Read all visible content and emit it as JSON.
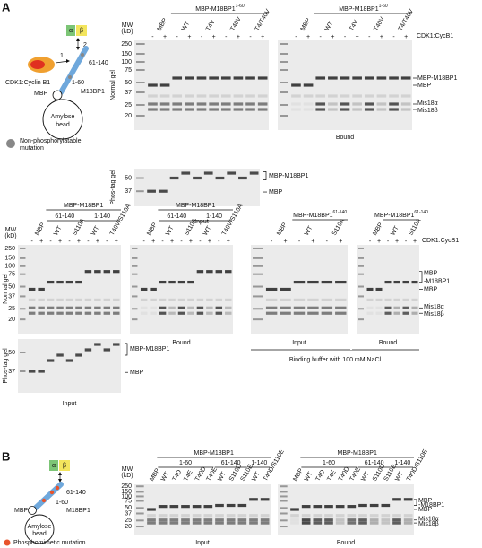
{
  "panel_a": {
    "label": "A",
    "schematic": {
      "alpha": "α",
      "beta": "β",
      "step_2": "2",
      "step_1": "1",
      "region_c": "61-140",
      "region_n": "1-60",
      "kinase": "CDK1:Cyclin B1",
      "tag": "MBP",
      "protein": "M18BP1",
      "bead": [
        "Amylose",
        "bead"
      ],
      "legend": [
        "Non-phosphorylatable",
        "mutation"
      ]
    },
    "top": {
      "mw_title": [
        "MW",
        "(kD)"
      ],
      "mw": [
        "250",
        "150",
        "100",
        "75",
        "50",
        "37",
        "25",
        "20"
      ],
      "phos_mw": [
        "50",
        "37"
      ],
      "normal_label": "Normal gel",
      "phos_label": "Phos-tag gel",
      "cdk_label": "CDK1:CycB1",
      "gels": [
        {
          "header": "MBP-M18BP1",
          "header_sup": "1-60",
          "lanes": [
            "MBP",
            "WT",
            "T4V",
            "T40V",
            "T4/T40V"
          ],
          "signs": [
            "-",
            "+",
            "-",
            "+",
            "-",
            "+",
            "-",
            "+",
            "-",
            "+"
          ],
          "caption": "Input"
        },
        {
          "header": "MBP-M18BP1",
          "header_sup": "1-60",
          "lanes": [
            "MBP",
            "WT",
            "T4V",
            "T40V",
            "T4/T40V"
          ],
          "signs": [
            "-",
            "+",
            "-",
            "+",
            "-",
            "+",
            "-",
            "+",
            "-",
            "+"
          ],
          "caption": "Bound"
        }
      ],
      "band_labels": [
        "MBP-M18BP1",
        "MBP",
        "Mis18α",
        "Mis18β"
      ],
      "phos_band_labels": [
        "MBP-M18BP1",
        "MBP"
      ]
    },
    "middle": {
      "mw_title": [
        "MW",
        "(kD)"
      ],
      "mw": [
        "250",
        "150",
        "100",
        "75",
        "50",
        "37",
        "25",
        "20"
      ],
      "phos_mw": [
        "50",
        "37"
      ],
      "normal_label": "Normal gel",
      "phos_label": "Phos-tag gel",
      "cdk_label": "CDK1:CycB1",
      "gels": [
        {
          "header": "MBP-M18BP1",
          "groups": [
            "61-140",
            "1-140"
          ],
          "lanes": [
            "MBP",
            "WT",
            "S110A",
            "WT",
            "T40V/S110A"
          ],
          "signs": [
            "-",
            "+",
            "-",
            "+",
            "-",
            "+",
            "-",
            "+",
            "-",
            "+"
          ],
          "caption": "Input"
        },
        {
          "header": "MBP-M18BP1",
          "groups": [
            "61-140",
            "1-140"
          ],
          "lanes": [
            "MBP",
            "WT",
            "S110A",
            "WT",
            "T40V/S110A"
          ],
          "signs": [
            "-",
            "+",
            "-",
            "+",
            "-",
            "+",
            "-",
            "+",
            "-",
            "+"
          ],
          "caption": "Bound"
        },
        {
          "header": "MBP-M18BP1",
          "header_sup": "61-140",
          "lanes": [
            "MBP",
            "WT",
            "S110A"
          ],
          "signs": [
            "-",
            "+",
            "-",
            "+",
            "-",
            "+"
          ],
          "caption": "Input"
        },
        {
          "header": "MBP-M18BP1",
          "header_sup": "61-140",
          "lanes": [
            "MBP",
            "WT",
            "S110A"
          ],
          "signs": [
            "-",
            "+",
            "-",
            "+",
            "-",
            "+"
          ],
          "caption": "Bound"
        }
      ],
      "band_labels": [
        "MBP",
        "-M18BP1",
        "MBP",
        "Mis18α",
        "Mis18β"
      ],
      "phos_band_labels": [
        "MBP-M18BP1",
        "MBP"
      ],
      "note": "Binding buffer with 100 mM NaCl"
    }
  },
  "panel_b": {
    "label": "B",
    "schematic": {
      "alpha": "α",
      "beta": "β",
      "region_c": "61-140",
      "region_n": "1-60",
      "tag": "MBP",
      "protein": "M18BP1",
      "bead": [
        "Amylose",
        "bead"
      ],
      "legend": "Phosphomimetic mutation"
    },
    "mw_title": [
      "MW",
      "(kD)"
    ],
    "mw": [
      "250",
      "150",
      "100",
      "75",
      "50",
      "37",
      "25",
      "20"
    ],
    "gels": [
      {
        "header": "MBP-M18BP1",
        "groups": [
          "1-60",
          "61-140",
          "1-140"
        ],
        "lanes": [
          "MBP",
          "WT",
          "T4D",
          "T4E",
          "T40D",
          "T40E",
          "WT",
          "S110D",
          "S110E",
          "WT",
          "T40D/S110E"
        ],
        "caption": "Input"
      },
      {
        "header": "MBP-M18BP1",
        "groups": [
          "1-60",
          "61-140",
          "1-140"
        ],
        "lanes": [
          "MBP",
          "WT",
          "T4D",
          "T4E",
          "T40D",
          "T40E",
          "WT",
          "S110D",
          "S110E",
          "WT",
          "T40D/S110E"
        ],
        "caption": "Bound"
      }
    ],
    "band_labels": [
      "MBP",
      "-M18BP1",
      "MBP",
      "Mis18α",
      "Mis18β"
    ]
  }
}
